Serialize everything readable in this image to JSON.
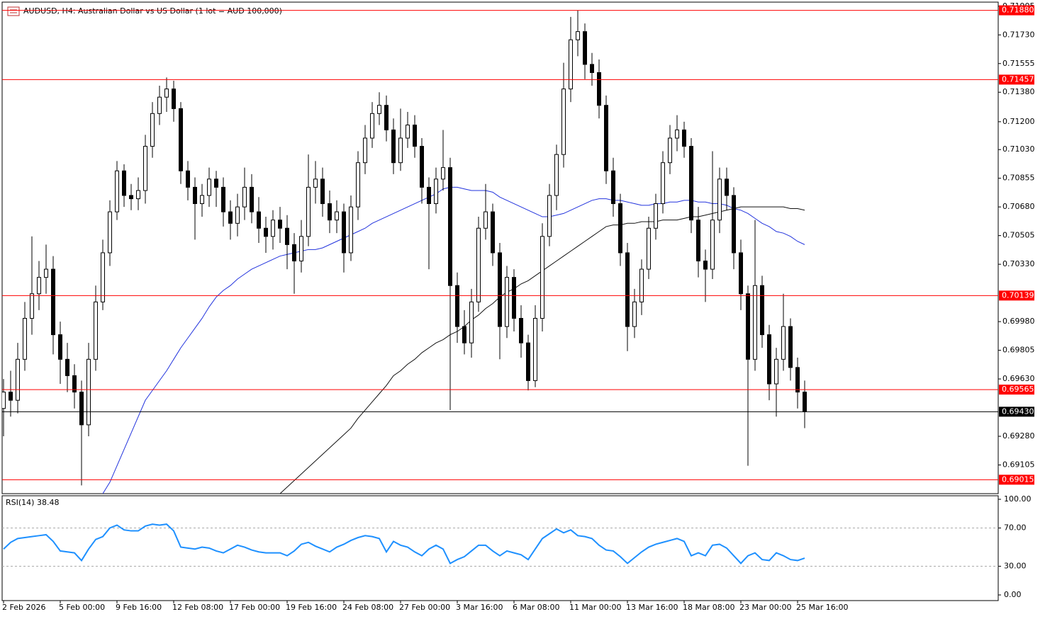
{
  "chart_data": {
    "type": "candlestick",
    "title": "AUDUSD, H4:  Australian Dollar vs US Dollar (1 lot = AUD 100,000)",
    "open": [
      0.6945,
      0.6955,
      0.695,
      0.6975,
      0.7,
      0.7015,
      0.7025,
      0.703,
      0.699,
      0.6975,
      0.6965,
      0.6955,
      0.6935,
      0.6975,
      0.701,
      0.704,
      0.7065,
      0.709,
      0.7075,
      0.7073,
      0.7078,
      0.7105,
      0.7125,
      0.7135,
      0.714,
      0.7128,
      0.709,
      0.708,
      0.707,
      0.7075,
      0.7085,
      0.708,
      0.7065,
      0.7058,
      0.7068,
      0.708,
      0.7065,
      0.7055,
      0.705,
      0.706,
      0.7055,
      0.7045,
      0.7035,
      0.705,
      0.708,
      0.7085,
      0.707,
      0.706,
      0.7065,
      0.704,
      0.7068,
      0.7095,
      0.711,
      0.7125,
      0.713,
      0.7115,
      0.7095,
      0.711,
      0.7118,
      0.7105,
      0.708,
      0.707,
      0.7085,
      0.7092,
      0.702,
      0.6995,
      0.6985,
      0.701,
      0.7055,
      0.7065,
      0.704,
      0.6995,
      0.7025,
      0.7,
      0.6985,
      0.6962,
      0.7,
      0.705,
      0.7075,
      0.71,
      0.714,
      0.717,
      0.7175,
      0.7155,
      0.715,
      0.713,
      0.709,
      0.707,
      0.704,
      0.6995,
      0.701,
      0.703,
      0.7055,
      0.707,
      0.7095,
      0.711,
      0.7115,
      0.7105,
      0.706,
      0.7035,
      0.703,
      0.706,
      0.7085,
      0.7075,
      0.704,
      0.7015,
      0.6975,
      0.702,
      0.699,
      0.696,
      0.6975,
      0.6995,
      0.697,
      0.6955
    ],
    "high": [
      0.6963,
      0.6968,
      0.6985,
      0.701,
      0.705,
      0.7035,
      0.7045,
      0.7038,
      0.6998,
      0.6985,
      0.6972,
      0.6962,
      0.6985,
      0.702,
      0.7048,
      0.7072,
      0.7096,
      0.7094,
      0.7082,
      0.7086,
      0.7112,
      0.7132,
      0.7142,
      0.7147,
      0.7145,
      0.7132,
      0.7096,
      0.7086,
      0.7082,
      0.7092,
      0.709,
      0.7086,
      0.7072,
      0.7076,
      0.7092,
      0.7088,
      0.7074,
      0.7062,
      0.7066,
      0.7068,
      0.7063,
      0.7052,
      0.706,
      0.71,
      0.7096,
      0.7092,
      0.7078,
      0.7072,
      0.707,
      0.7075,
      0.7102,
      0.7118,
      0.7132,
      0.7138,
      0.7136,
      0.7122,
      0.7128,
      0.7126,
      0.7124,
      0.711,
      0.7086,
      0.7092,
      0.7115,
      0.7098,
      0.7028,
      0.7005,
      0.7018,
      0.7062,
      0.7082,
      0.707,
      0.7046,
      0.7032,
      0.703,
      0.7008,
      0.699,
      0.7008,
      0.7058,
      0.7082,
      0.7106,
      0.7156,
      0.7184,
      0.7188,
      0.718,
      0.7162,
      0.7158,
      0.7136,
      0.7098,
      0.7076,
      0.7046,
      0.7018,
      0.7036,
      0.7062,
      0.7076,
      0.7102,
      0.7118,
      0.7124,
      0.712,
      0.711,
      0.7068,
      0.7042,
      0.7102,
      0.7092,
      0.7092,
      0.708,
      0.7048,
      0.702,
      0.706,
      0.7026,
      0.6996,
      0.6982,
      0.7015,
      0.7,
      0.6976,
      0.6962
    ],
    "low": [
      0.6928,
      0.694,
      0.6942,
      0.6968,
      0.699,
      0.7005,
      0.7015,
      0.6978,
      0.696,
      0.6955,
      0.6945,
      0.6898,
      0.6928,
      0.6968,
      0.7005,
      0.7032,
      0.706,
      0.7068,
      0.7066,
      0.7066,
      0.707,
      0.7098,
      0.7118,
      0.7126,
      0.712,
      0.7082,
      0.7072,
      0.7048,
      0.7062,
      0.7068,
      0.7068,
      0.7056,
      0.7048,
      0.705,
      0.706,
      0.7058,
      0.7046,
      0.704,
      0.7042,
      0.7046,
      0.703,
      0.7015,
      0.7028,
      0.7044,
      0.707,
      0.7062,
      0.7052,
      0.7052,
      0.7028,
      0.7035,
      0.706,
      0.7088,
      0.7104,
      0.7118,
      0.7108,
      0.7088,
      0.709,
      0.7104,
      0.7098,
      0.707,
      0.703,
      0.7064,
      0.7078,
      0.6944,
      0.6985,
      0.6978,
      0.6976,
      0.7004,
      0.7048,
      0.7032,
      0.6975,
      0.6988,
      0.6992,
      0.6976,
      0.6956,
      0.6958,
      0.6992,
      0.7044,
      0.7066,
      0.7092,
      0.7132,
      0.716,
      0.7146,
      0.7142,
      0.7122,
      0.7082,
      0.7062,
      0.7032,
      0.698,
      0.6988,
      0.7002,
      0.7024,
      0.7048,
      0.7064,
      0.7088,
      0.7102,
      0.7098,
      0.7052,
      0.7025,
      0.701,
      0.7024,
      0.7052,
      0.7066,
      0.703,
      0.7005,
      0.691,
      0.6968,
      0.6982,
      0.695,
      0.694,
      0.6968,
      0.6962,
      0.6945,
      0.6933
    ],
    "close": [
      0.6955,
      0.695,
      0.6975,
      0.7,
      0.7015,
      0.7025,
      0.703,
      0.699,
      0.6975,
      0.6965,
      0.6955,
      0.6935,
      0.6975,
      0.701,
      0.704,
      0.7065,
      0.709,
      0.7075,
      0.7073,
      0.7078,
      0.7105,
      0.7125,
      0.7135,
      0.714,
      0.7128,
      0.709,
      0.708,
      0.707,
      0.7075,
      0.7085,
      0.708,
      0.7065,
      0.7058,
      0.7068,
      0.708,
      0.7065,
      0.7055,
      0.705,
      0.706,
      0.7055,
      0.7045,
      0.7035,
      0.705,
      0.708,
      0.7085,
      0.707,
      0.706,
      0.7065,
      0.704,
      0.7068,
      0.7095,
      0.711,
      0.7125,
      0.713,
      0.7115,
      0.7095,
      0.711,
      0.7118,
      0.7105,
      0.708,
      0.707,
      0.7085,
      0.7092,
      0.702,
      0.6995,
      0.6985,
      0.701,
      0.7055,
      0.7065,
      0.704,
      0.6995,
      0.7025,
      0.7,
      0.6985,
      0.6962,
      0.7,
      0.705,
      0.7075,
      0.71,
      0.714,
      0.717,
      0.7175,
      0.7155,
      0.715,
      0.713,
      0.709,
      0.707,
      0.704,
      0.6995,
      0.701,
      0.703,
      0.7055,
      0.707,
      0.7095,
      0.711,
      0.7115,
      0.7105,
      0.706,
      0.7035,
      0.703,
      0.706,
      0.7085,
      0.7075,
      0.704,
      0.7015,
      0.6975,
      0.702,
      0.699,
      0.696,
      0.6975,
      0.6995,
      0.697,
      0.6955,
      0.6943
    ],
    "ylim": [
      0.6893,
      0.7193
    ],
    "yticks": [
      0.71905,
      {
        "value": 0.7173,
        "label": "0.71730"
      },
      0.71555,
      {
        "value": 0.7138,
        "label": "0.71380"
      },
      {
        "value": 0.712,
        "label": "0.71200"
      },
      {
        "value": 0.7103,
        "label": "0.71030"
      },
      0.70855,
      {
        "value": 0.7068,
        "label": "0.70680"
      },
      0.70505,
      {
        "value": 0.7033,
        "label": "0.70330"
      },
      {
        "value": 0.6998,
        "label": "0.69980"
      },
      0.69805,
      {
        "value": 0.6963,
        "label": "0.69630"
      },
      {
        "value": 0.6928,
        "label": "0.69280"
      },
      0.69105
    ],
    "levels": [
      {
        "value": 0.7188,
        "label": "0.71880"
      },
      0.71457,
      0.70139,
      0.69565,
      0.69015
    ],
    "level_color": "#ff0000",
    "bid": {
      "value": 0.6943,
      "label": "0.69430"
    },
    "moving_averages": [
      {
        "color": "#2233dd",
        "values": [
          null,
          null,
          null,
          null,
          null,
          null,
          null,
          null,
          null,
          null,
          null,
          null,
          null,
          null,
          0.6893,
          0.69,
          0.691,
          0.692,
          0.693,
          0.694,
          0.695,
          0.6956,
          0.6962,
          0.6968,
          0.6975,
          0.6982,
          0.6988,
          0.6994,
          0.7,
          0.7007,
          0.7013,
          0.7017,
          0.702,
          0.7024,
          0.7027,
          0.703,
          0.7032,
          0.7034,
          0.7036,
          0.7038,
          0.7039,
          0.704,
          0.7041,
          0.7042,
          0.7042,
          0.7043,
          0.7045,
          0.7047,
          0.7049,
          0.7051,
          0.7053,
          0.7055,
          0.7058,
          0.706,
          0.7062,
          0.7064,
          0.7066,
          0.7068,
          0.707,
          0.7072,
          0.7074,
          0.7076,
          0.7079,
          0.708,
          0.708,
          0.7079,
          0.7078,
          0.7078,
          0.7078,
          0.7077,
          0.7074,
          0.7072,
          0.707,
          0.7068,
          0.7066,
          0.7064,
          0.7062,
          0.7062,
          0.7063,
          0.7064,
          0.7066,
          0.7068,
          0.707,
          0.7072,
          0.7073,
          0.7073,
          0.7072,
          0.7072,
          0.7071,
          0.707,
          0.7069,
          0.7069,
          0.707,
          0.707,
          0.7071,
          0.7071,
          0.7072,
          0.7072,
          0.7071,
          0.7071,
          0.707,
          0.707,
          0.7069,
          0.7067,
          0.7066,
          0.7064,
          0.7061,
          0.7058,
          0.7056,
          0.7053,
          0.7052,
          0.705,
          0.7047,
          0.7045
        ]
      },
      {
        "color": "#111111",
        "values": [
          null,
          null,
          null,
          null,
          null,
          null,
          null,
          null,
          null,
          null,
          null,
          null,
          null,
          null,
          null,
          null,
          null,
          null,
          null,
          null,
          null,
          null,
          null,
          null,
          null,
          null,
          null,
          null,
          null,
          null,
          null,
          null,
          null,
          null,
          null,
          null,
          null,
          null,
          null,
          0.6893,
          0.6897,
          0.6901,
          0.6905,
          0.6909,
          0.6913,
          0.6917,
          0.6921,
          0.6925,
          0.6929,
          0.6933,
          0.6939,
          0.6944,
          0.6949,
          0.6954,
          0.6959,
          0.6965,
          0.6968,
          0.6972,
          0.6975,
          0.6979,
          0.6982,
          0.6985,
          0.6987,
          0.699,
          0.6992,
          0.6995,
          0.6999,
          0.7002,
          0.7006,
          0.7009,
          0.7013,
          0.7016,
          0.7018,
          0.7021,
          0.7023,
          0.7026,
          0.7029,
          0.7032,
          0.7035,
          0.7038,
          0.7041,
          0.7044,
          0.7047,
          0.705,
          0.7053,
          0.7056,
          0.7057,
          0.7057,
          0.7058,
          0.7058,
          0.7059,
          0.7059,
          0.7059,
          0.706,
          0.706,
          0.706,
          0.7061,
          0.7062,
          0.7062,
          0.7063,
          0.7064,
          0.7065,
          0.7066,
          0.7067,
          0.7068,
          0.7068,
          0.7068,
          0.7068,
          0.7068,
          0.7068,
          0.7068,
          0.7067,
          0.7067,
          0.7066
        ]
      }
    ],
    "xlabels": [
      "2 Feb 2026",
      "5 Feb 00:00",
      "9 Feb 16:00",
      "12 Feb 08:00",
      "17 Feb 00:00",
      "19 Feb 16:00",
      "24 Feb 08:00",
      "27 Feb 00:00",
      "3 Mar 16:00",
      "6 Mar 08:00",
      "11 Mar 00:00",
      "13 Mar 16:00",
      "18 Mar 08:00",
      "23 Mar 00:00",
      "25 Mar 16:00"
    ],
    "rsi": {
      "title": "RSI(14) 38.48",
      "color": "#1e90ff",
      "values": [
        48,
        55,
        59,
        60,
        61,
        62,
        63,
        56,
        46,
        45,
        44,
        36,
        48,
        58,
        61,
        70,
        73,
        68,
        67,
        67,
        72,
        74,
        73,
        74,
        67,
        50,
        49,
        48,
        50,
        49,
        46,
        44,
        48,
        52,
        50,
        47,
        45,
        44,
        44,
        44,
        41,
        46,
        53,
        55,
        51,
        48,
        45,
        50,
        53,
        57,
        60,
        62,
        61,
        59,
        45,
        56,
        52,
        50,
        45,
        41,
        48,
        52,
        48,
        33,
        37,
        40,
        46,
        52,
        52,
        46,
        41,
        46,
        44,
        42,
        37,
        48,
        59,
        64,
        69,
        65,
        68,
        62,
        61,
        59,
        52,
        47,
        46,
        40,
        33,
        39,
        45,
        50,
        53,
        55,
        57,
        59,
        56,
        41,
        44,
        41,
        52,
        53,
        49,
        41,
        33,
        41,
        44,
        37,
        36,
        44,
        41,
        37,
        36,
        38.48
      ],
      "ylim": [
        -5.9,
        103.7
      ],
      "yticks": [
        {
          "value": 100,
          "label": "100.00"
        },
        {
          "value": 70,
          "label": "70.00"
        },
        {
          "value": 30,
          "label": "30.00"
        },
        {
          "value": 0,
          "label": "0.00"
        }
      ],
      "levels": [
        70,
        30
      ]
    }
  }
}
